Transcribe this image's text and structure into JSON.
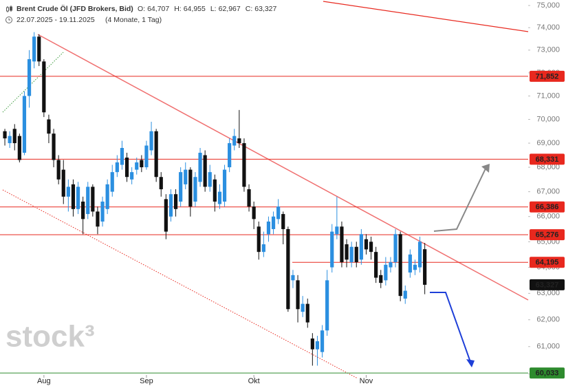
{
  "chart_data": {
    "type": "candlestick",
    "title": "Brent Crude Öl (JFD Brokers, Bid)",
    "ohlc_labels": [
      {
        "label": "O:",
        "value": "64,707"
      },
      {
        "label": "H:",
        "value": "64,955"
      },
      {
        "label": "L:",
        "value": "62,967"
      },
      {
        "label": "C:",
        "value": "63,327"
      }
    ],
    "date_range": "22.07.2025 - 19.11.2025",
    "period": "(4 Monate, 1 Tag)",
    "watermark": "stock³",
    "categories": [
      null,
      null,
      null,
      null,
      null,
      null,
      null,
      null,
      "Aug",
      null,
      null,
      null,
      null,
      null,
      null,
      null,
      null,
      null,
      null,
      null,
      null,
      null,
      null,
      null,
      null,
      null,
      null,
      null,
      null,
      "Sep",
      null,
      null,
      null,
      null,
      null,
      null,
      null,
      null,
      null,
      null,
      null,
      null,
      null,
      null,
      null,
      null,
      null,
      null,
      null,
      null,
      null,
      "Okt",
      null,
      null,
      null,
      null,
      null,
      null,
      null,
      null,
      null,
      null,
      null,
      null,
      null,
      null,
      null,
      null,
      null,
      null,
      null,
      null,
      null,
      null,
      "Nov",
      null,
      null,
      null,
      null,
      null,
      null,
      null,
      null,
      null,
      null,
      null,
      null
    ],
    "open": [
      69.5,
      69.0,
      69.6,
      69.3,
      68.6,
      71.0,
      72.5,
      73.6,
      72.5,
      70.0,
      69.4,
      68.3,
      67.9,
      66.8,
      67.3,
      66.3,
      66.6,
      66.1,
      67.2,
      66.2,
      65.8,
      66.3,
      67.0,
      67.8,
      68.1,
      68.4,
      67.5,
      67.9,
      68.3,
      68.0,
      68.7,
      69.5,
      67.6,
      66.7,
      66.0,
      66.9,
      66.6,
      67.3,
      67.9,
      66.6,
      67.4,
      68.5,
      67.2,
      67.5,
      66.5,
      66.6,
      68.0,
      68.9,
      69.2,
      69.0,
      67.1,
      66.4,
      65.6,
      64.6,
      65.3,
      65.5,
      65.9,
      66.1,
      65.5,
      63.5,
      63.5,
      62.3,
      62.6,
      61.3,
      60.9,
      60.8,
      61.6,
      64.0,
      65.3,
      65.6,
      64.9,
      64.2,
      64.8,
      64.3,
      65.1,
      65.0,
      64.6,
      63.7,
      63.5,
      64.0,
      64.2,
      65.3,
      62.8,
      63.8,
      63.9,
      64.0,
      64.707
    ],
    "high": [
      69.6,
      69.5,
      69.8,
      69.4,
      71.2,
      73.0,
      73.8,
      73.7,
      72.6,
      70.2,
      69.6,
      68.5,
      68.3,
      67.5,
      67.5,
      67.4,
      66.8,
      67.4,
      67.3,
      66.4,
      66.8,
      67.5,
      68.1,
      68.5,
      69.1,
      68.6,
      68.0,
      68.4,
      68.5,
      69.1,
      69.9,
      69.6,
      67.8,
      66.9,
      67.1,
      67.1,
      68.0,
      68.2,
      68.0,
      67.8,
      68.8,
      68.7,
      68.1,
      67.7,
      67.3,
      68.1,
      69.2,
      69.6,
      70.4,
      69.2,
      67.3,
      66.6,
      65.8,
      65.4,
      66.0,
      66.2,
      66.7,
      66.2,
      65.6,
      63.9,
      63.7,
      62.9,
      62.8,
      61.5,
      61.4,
      61.8,
      63.9,
      65.7,
      66.8,
      65.8,
      65.1,
      65.0,
      65.0,
      65.5,
      65.3,
      65.2,
      64.8,
      63.9,
      64.4,
      64.4,
      65.5,
      65.4,
      63.3,
      64.7,
      64.3,
      65.2,
      64.955
    ],
    "low": [
      68.9,
      68.8,
      68.7,
      68.2,
      68.5,
      70.5,
      72.2,
      72.3,
      70.1,
      69.0,
      68.0,
      67.3,
      66.5,
      66.2,
      66.0,
      66.1,
      65.3,
      65.9,
      66.0,
      65.3,
      65.6,
      66.1,
      66.8,
      67.6,
      67.9,
      67.4,
      67.3,
      67.7,
      67.8,
      67.9,
      68.5,
      67.4,
      66.8,
      65.1,
      65.8,
      66.0,
      66.4,
      67.1,
      66.0,
      66.4,
      67.2,
      67.0,
      67.0,
      66.2,
      66.3,
      66.4,
      67.8,
      68.7,
      68.8,
      67.0,
      66.2,
      65.5,
      64.3,
      64.4,
      65.0,
      65.3,
      65.7,
      64.9,
      62.3,
      63.2,
      61.9,
      62.1,
      61.7,
      60.3,
      60.3,
      60.6,
      61.4,
      63.8,
      65.1,
      64.0,
      64.0,
      64.0,
      64.0,
      64.1,
      64.5,
      64.3,
      63.4,
      63.2,
      63.3,
      63.8,
      64.0,
      62.7,
      62.6,
      63.6,
      63.7,
      63.8,
      62.967
    ],
    "close": [
      69.2,
      69.3,
      69.0,
      68.3,
      71.0,
      72.6,
      73.6,
      72.5,
      70.3,
      69.4,
      68.3,
      67.5,
      66.8,
      67.2,
      66.3,
      67.2,
      65.9,
      67.2,
      66.2,
      65.6,
      66.6,
      67.3,
      67.8,
      68.2,
      68.8,
      67.6,
      67.8,
      68.2,
      68.0,
      68.9,
      69.5,
      67.6,
      67.1,
      65.4,
      66.9,
      66.3,
      67.8,
      67.9,
      66.4,
      67.6,
      68.6,
      67.2,
      67.8,
      66.6,
      67.0,
      67.9,
      69.0,
      69.3,
      69.0,
      67.2,
      66.4,
      65.9,
      64.6,
      64.9,
      65.8,
      66.0,
      66.4,
      65.5,
      62.4,
      63.7,
      62.4,
      62.6,
      61.9,
      60.9,
      61.2,
      61.6,
      63.5,
      65.4,
      65.6,
      64.2,
      64.3,
      64.8,
      64.2,
      65.3,
      64.7,
      64.6,
      63.6,
      63.4,
      64.1,
      64.2,
      65.3,
      62.9,
      63.1,
      64.5,
      64.1,
      65.0,
      63.327
    ],
    "up_color": "#2b8fe0",
    "down_color": "#111111",
    "log_scale": true,
    "ylim": [
      59.96,
      75.25
    ],
    "yticks": [
      {
        "value": 60,
        "label": "60,000"
      },
      {
        "value": 61,
        "label": "61,000"
      },
      {
        "value": 62,
        "label": "62,000"
      },
      {
        "value": 63,
        "label": "63,000"
      },
      {
        "value": 64,
        "label": "64,000"
      },
      {
        "value": 65,
        "label": "65,000"
      },
      {
        "value": 66,
        "label": "66,000"
      },
      {
        "value": 67,
        "label": "67,000"
      },
      {
        "value": 68,
        "label": "68,000"
      },
      {
        "value": 69,
        "label": "69,000"
      },
      {
        "value": 70,
        "label": "70,000"
      },
      {
        "value": 71,
        "label": "71,000"
      },
      {
        "value": 72,
        "label": "72,000"
      },
      {
        "value": 73,
        "label": "73,000"
      },
      {
        "value": 74,
        "label": "74,000"
      },
      {
        "value": 75,
        "label": "75,000"
      }
    ],
    "levels": [
      {
        "value": 71.852,
        "label": "71,852",
        "color": "#e8281e"
      },
      {
        "value": 68.331,
        "label": "68,331",
        "color": "#e8281e"
      },
      {
        "value": 66.386,
        "label": "66,386",
        "color": "#e8281e"
      },
      {
        "value": 65.276,
        "label": "65,276",
        "color": "#e8281e"
      },
      {
        "value": 64.195,
        "label": "64,195",
        "color": "#e8281e"
      },
      {
        "value": 60.033,
        "label": "60,033",
        "color": "#2e8b2e"
      }
    ],
    "last_price": {
      "value": 63.327,
      "label": "63,327",
      "color": "#111111"
    },
    "grid": false
  }
}
